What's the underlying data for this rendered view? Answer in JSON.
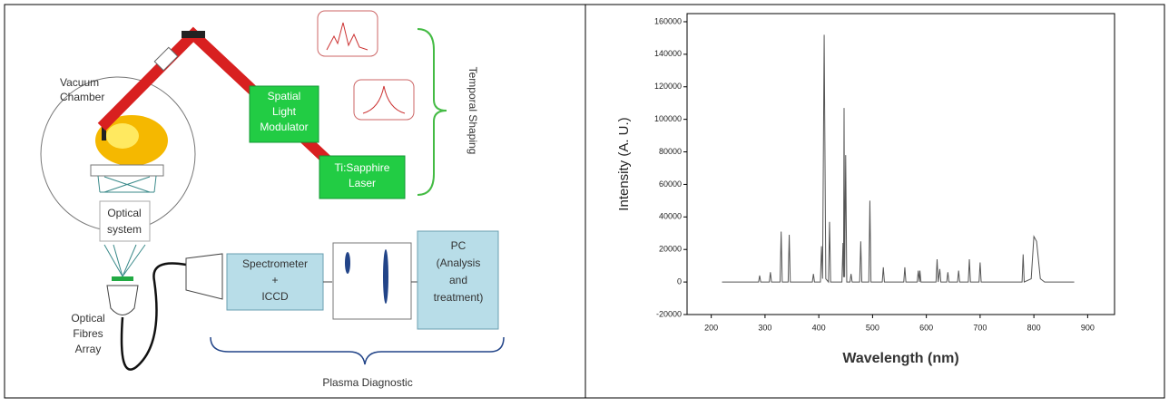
{
  "diagram": {
    "vacuum_chamber": [
      "Vacuum",
      "Chamber"
    ],
    "slm": [
      "Spatial",
      "Light",
      "Modulator"
    ],
    "laser": [
      "Ti:Sapphire",
      "Laser"
    ],
    "temporal_shaping": "Temporal Shaping",
    "optical_system": [
      "Optical",
      "system"
    ],
    "fibres": [
      "Optical",
      "Fibres",
      "Array"
    ],
    "spectrometer": [
      "Spectrometer",
      "+",
      "ICCD"
    ],
    "pc": [
      "PC",
      "(Analysis",
      "and",
      "treatment)"
    ],
    "plasma_diagnostic": "Plasma Diagnostic"
  },
  "chart_data": {
    "type": "line",
    "xlabel": "Wavelength (nm)",
    "ylabel": "Intensity (A. U.)",
    "x": [
      220,
      288,
      290,
      292,
      308,
      310,
      312,
      328,
      330,
      332,
      343,
      345,
      347,
      388,
      390,
      392,
      403,
      405,
      407,
      410,
      413,
      418,
      420,
      422,
      443,
      445,
      446,
      447,
      448,
      450,
      452,
      458,
      460,
      462,
      476,
      478,
      480,
      493,
      495,
      497,
      518,
      520,
      522,
      558,
      560,
      562,
      583,
      585,
      587,
      588,
      590,
      618,
      620,
      622,
      625,
      627,
      638,
      640,
      642,
      658,
      660,
      662,
      678,
      680,
      682,
      698,
      700,
      702,
      778,
      780,
      782,
      795,
      800,
      805,
      812,
      820,
      875
    ],
    "series": [
      {
        "color": "#555555",
        "values": [
          0,
          0,
          4000,
          0,
          0,
          6000,
          0,
          0,
          31000,
          0,
          0,
          29000,
          0,
          0,
          5000,
          0,
          0,
          22000,
          2000,
          152000,
          2000,
          0,
          37000,
          0,
          0,
          24000,
          3000,
          107000,
          3000,
          78000,
          0,
          0,
          5000,
          0,
          0,
          25000,
          0,
          0,
          50000,
          0,
          0,
          9000,
          0,
          0,
          9000,
          0,
          0,
          7000,
          0,
          7000,
          0,
          0,
          14000,
          0,
          8000,
          0,
          0,
          6000,
          0,
          0,
          7000,
          0,
          0,
          14000,
          0,
          0,
          12000,
          0,
          0,
          17000,
          0,
          2000,
          28000,
          25000,
          2000,
          0,
          0
        ]
      }
    ],
    "xlim": [
      155,
      950
    ],
    "ylim": [
      -20000,
      165000
    ],
    "xticks": [
      200,
      300,
      400,
      500,
      600,
      700,
      800,
      900
    ],
    "yticks": [
      -20000,
      0,
      20000,
      40000,
      60000,
      80000,
      100000,
      120000,
      140000,
      160000
    ]
  }
}
